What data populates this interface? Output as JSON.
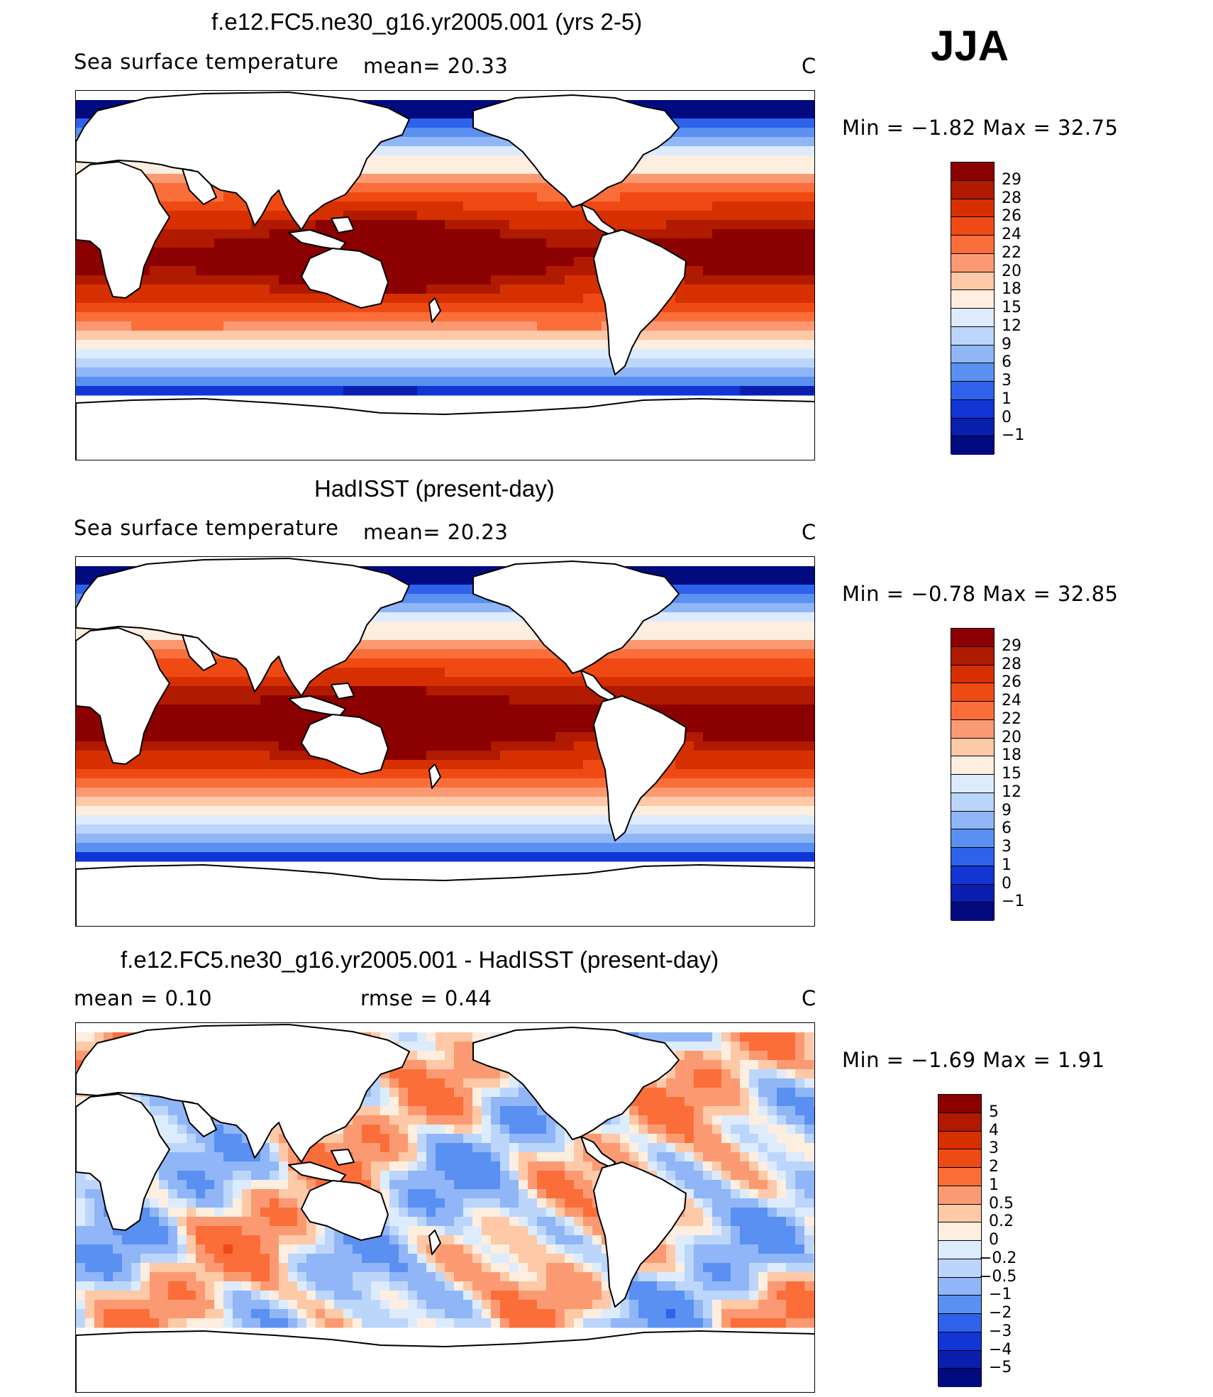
{
  "season": "JJA",
  "panels": [
    {
      "title": "f.e12.FC5.ne30_g16.yr2005.001 (yrs 2-5)",
      "left_label": "Sea surface temperature",
      "mid_label": "mean=   20.33",
      "units": "C",
      "minmax": "Min =   −1.82  Max =    32.75",
      "kind": "abs",
      "colorbar": {
        "labels": [
          "29",
          "28",
          "26",
          "24",
          "22",
          "20",
          "18",
          "15",
          "12",
          "9",
          "6",
          "3",
          "1",
          "0",
          "−1"
        ],
        "colors": [
          "#8b0000",
          "#b01a00",
          "#d73000",
          "#f04a14",
          "#fb6e3a",
          "#fb9a72",
          "#fdc9a7",
          "#feeee0",
          "#dcecfd",
          "#bcd6fb",
          "#90b6f8",
          "#5a90f2",
          "#2f62ea",
          "#1235d6",
          "#0a1fb0",
          "#020a80"
        ]
      }
    },
    {
      "title": "HadISST (present-day)",
      "left_label": "Sea surface temperature",
      "mid_label": "mean=   20.23",
      "units": "C",
      "minmax": "Min =   −0.78  Max =    32.85",
      "kind": "abs",
      "colorbar": {
        "labels": [
          "29",
          "28",
          "26",
          "24",
          "22",
          "20",
          "18",
          "15",
          "12",
          "9",
          "6",
          "3",
          "1",
          "0",
          "−1"
        ],
        "colors": [
          "#8b0000",
          "#b01a00",
          "#d73000",
          "#f04a14",
          "#fb6e3a",
          "#fb9a72",
          "#fdc9a7",
          "#feeee0",
          "#dcecfd",
          "#bcd6fb",
          "#90b6f8",
          "#5a90f2",
          "#2f62ea",
          "#1235d6",
          "#0a1fb0",
          "#020a80"
        ]
      }
    },
    {
      "title": "f.e12.FC5.ne30_g16.yr2005.001 - HadISST (present-day)",
      "left_label": "mean =     0.10",
      "mid_label": "rmse =     0.44",
      "units": "C",
      "minmax": "Min =   −1.69  Max =      1.91",
      "kind": "diff",
      "colorbar": {
        "labels": [
          "5",
          "4",
          "3",
          "2",
          "1",
          "0.5",
          "0.2",
          "0",
          "−0.2",
          "−0.5",
          "−1",
          "−2",
          "−3",
          "−4",
          "−5"
        ],
        "colors": [
          "#8b0000",
          "#b01a00",
          "#d73000",
          "#f04a14",
          "#fb6e3a",
          "#fb9a72",
          "#fdc9a7",
          "#feeee0",
          "#dcecfd",
          "#bcd6fb",
          "#90b6f8",
          "#5a90f2",
          "#2f62ea",
          "#1235d6",
          "#0a1fb0",
          "#020a80"
        ]
      }
    }
  ]
}
